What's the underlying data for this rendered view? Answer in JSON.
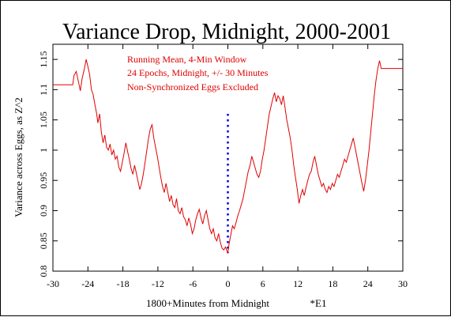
{
  "chart_data": {
    "type": "line",
    "title": "Variance Drop, Midnight, 2000-2001",
    "xlabel": "1800+Minutes from Midnight",
    "xlabel_note": "*E1",
    "ylabel": "Variance across Eggs, as Z^2",
    "xlim": [
      -30,
      30
    ],
    "ylim": [
      0.8,
      1.175
    ],
    "x_ticks": [
      -30,
      -24,
      -18,
      -12,
      -6,
      0,
      6,
      12,
      18,
      24,
      30
    ],
    "y_ticks": [
      0.8,
      0.85,
      0.9,
      0.95,
      1,
      1.05,
      1.1,
      1.15
    ],
    "annotations": [
      "Running Mean, 4-Min Window",
      "24 Epochs, Midnight, +/- 30 Minutes",
      "Non-Synchronized Eggs Excluded"
    ],
    "line_color": "#e00000",
    "marker_color": "#0000e0",
    "midnight_marker": {
      "x": 0,
      "y_from": 0.83,
      "y_to": 1.06,
      "style": "dotted"
    },
    "series": [
      {
        "values": [
          [
            -30,
            1.108
          ],
          [
            -26.6,
            1.108
          ],
          [
            -26.4,
            1.123
          ],
          [
            -26.0,
            1.13
          ],
          [
            -25.6,
            1.112
          ],
          [
            -25.3,
            1.098
          ],
          [
            -25.0,
            1.118
          ],
          [
            -24.6,
            1.135
          ],
          [
            -24.3,
            1.15
          ],
          [
            -24.0,
            1.138
          ],
          [
            -23.7,
            1.125
          ],
          [
            -23.4,
            1.1
          ],
          [
            -23.1,
            1.092
          ],
          [
            -22.8,
            1.075
          ],
          [
            -22.5,
            1.06
          ],
          [
            -22.3,
            1.045
          ],
          [
            -22.0,
            1.06
          ],
          [
            -21.7,
            1.03
          ],
          [
            -21.4,
            1.012
          ],
          [
            -21.1,
            1.025
          ],
          [
            -20.8,
            1.005
          ],
          [
            -20.5,
            1.0
          ],
          [
            -20.2,
            1.01
          ],
          [
            -19.9,
            0.992
          ],
          [
            -19.6,
            1.0
          ],
          [
            -19.3,
            0.985
          ],
          [
            -19.0,
            0.99
          ],
          [
            -18.7,
            0.972
          ],
          [
            -18.4,
            0.965
          ],
          [
            -18.1,
            0.98
          ],
          [
            -17.8,
            0.995
          ],
          [
            -17.5,
            1.012
          ],
          [
            -17.2,
            0.998
          ],
          [
            -16.9,
            0.985
          ],
          [
            -16.6,
            0.97
          ],
          [
            -16.3,
            0.96
          ],
          [
            -16.0,
            0.975
          ],
          [
            -15.7,
            0.962
          ],
          [
            -15.4,
            0.948
          ],
          [
            -15.1,
            0.935
          ],
          [
            -14.8,
            0.945
          ],
          [
            -14.5,
            0.96
          ],
          [
            -14.2,
            0.98
          ],
          [
            -13.9,
            1.0
          ],
          [
            -13.6,
            1.02
          ],
          [
            -13.3,
            1.035
          ],
          [
            -13.0,
            1.042
          ],
          [
            -12.7,
            1.02
          ],
          [
            -12.4,
            1.005
          ],
          [
            -12.1,
            0.99
          ],
          [
            -11.8,
            0.972
          ],
          [
            -11.5,
            0.955
          ],
          [
            -11.2,
            0.94
          ],
          [
            -10.9,
            0.93
          ],
          [
            -10.6,
            0.945
          ],
          [
            -10.3,
            0.93
          ],
          [
            -10.0,
            0.915
          ],
          [
            -9.7,
            0.925
          ],
          [
            -9.4,
            0.91
          ],
          [
            -9.1,
            0.905
          ],
          [
            -8.8,
            0.92
          ],
          [
            -8.5,
            0.9
          ],
          [
            -8.2,
            0.895
          ],
          [
            -7.9,
            0.905
          ],
          [
            -7.6,
            0.89
          ],
          [
            -7.3,
            0.885
          ],
          [
            -7.0,
            0.875
          ],
          [
            -6.7,
            0.888
          ],
          [
            -6.4,
            0.878
          ],
          [
            -6.1,
            0.862
          ],
          [
            -5.8,
            0.87
          ],
          [
            -5.5,
            0.885
          ],
          [
            -5.2,
            0.895
          ],
          [
            -4.9,
            0.902
          ],
          [
            -4.6,
            0.888
          ],
          [
            -4.3,
            0.878
          ],
          [
            -4.0,
            0.892
          ],
          [
            -3.7,
            0.9
          ],
          [
            -3.4,
            0.885
          ],
          [
            -3.1,
            0.87
          ],
          [
            -2.8,
            0.862
          ],
          [
            -2.5,
            0.87
          ],
          [
            -2.2,
            0.855
          ],
          [
            -1.9,
            0.85
          ],
          [
            -1.6,
            0.862
          ],
          [
            -1.3,
            0.848
          ],
          [
            -1.0,
            0.838
          ],
          [
            -0.7,
            0.835
          ],
          [
            -0.4,
            0.84
          ],
          [
            -0.1,
            0.832
          ],
          [
            0.0,
            0.83
          ],
          [
            0.2,
            0.845
          ],
          [
            0.5,
            0.86
          ],
          [
            0.8,
            0.875
          ],
          [
            1.1,
            0.87
          ],
          [
            1.4,
            0.88
          ],
          [
            1.7,
            0.892
          ],
          [
            2.0,
            0.9
          ],
          [
            2.3,
            0.91
          ],
          [
            2.6,
            0.92
          ],
          [
            2.9,
            0.935
          ],
          [
            3.2,
            0.95
          ],
          [
            3.5,
            0.965
          ],
          [
            3.8,
            0.975
          ],
          [
            4.1,
            0.99
          ],
          [
            4.4,
            0.98
          ],
          [
            4.7,
            0.97
          ],
          [
            5.0,
            0.96
          ],
          [
            5.3,
            0.955
          ],
          [
            5.6,
            0.965
          ],
          [
            5.9,
            0.985
          ],
          [
            6.2,
            1.0
          ],
          [
            6.5,
            1.02
          ],
          [
            6.8,
            1.04
          ],
          [
            7.1,
            1.06
          ],
          [
            7.4,
            1.072
          ],
          [
            7.7,
            1.085
          ],
          [
            8.0,
            1.095
          ],
          [
            8.3,
            1.08
          ],
          [
            8.6,
            1.09
          ],
          [
            8.9,
            1.085
          ],
          [
            9.2,
            1.075
          ],
          [
            9.5,
            1.09
          ],
          [
            9.8,
            1.07
          ],
          [
            10.1,
            1.05
          ],
          [
            10.4,
            1.035
          ],
          [
            10.7,
            1.02
          ],
          [
            11.0,
            1.0
          ],
          [
            11.3,
            0.975
          ],
          [
            11.6,
            0.955
          ],
          [
            11.9,
            0.935
          ],
          [
            12.2,
            0.912
          ],
          [
            12.5,
            0.925
          ],
          [
            12.8,
            0.935
          ],
          [
            13.1,
            0.925
          ],
          [
            13.4,
            0.938
          ],
          [
            13.7,
            0.95
          ],
          [
            14.0,
            0.96
          ],
          [
            14.3,
            0.965
          ],
          [
            14.6,
            0.98
          ],
          [
            14.9,
            0.99
          ],
          [
            15.2,
            0.975
          ],
          [
            15.5,
            0.96
          ],
          [
            15.8,
            0.95
          ],
          [
            16.1,
            0.94
          ],
          [
            16.4,
            0.945
          ],
          [
            16.7,
            0.935
          ],
          [
            17.0,
            0.93
          ],
          [
            17.3,
            0.94
          ],
          [
            17.6,
            0.935
          ],
          [
            17.9,
            0.945
          ],
          [
            18.2,
            0.94
          ],
          [
            18.5,
            0.95
          ],
          [
            18.8,
            0.96
          ],
          [
            19.1,
            0.955
          ],
          [
            19.4,
            0.965
          ],
          [
            19.7,
            0.975
          ],
          [
            20.0,
            0.985
          ],
          [
            20.3,
            0.98
          ],
          [
            20.6,
            0.99
          ],
          [
            20.9,
            1.0
          ],
          [
            21.2,
            1.01
          ],
          [
            21.5,
            1.02
          ],
          [
            21.8,
            1.005
          ],
          [
            22.1,
            0.99
          ],
          [
            22.4,
            0.975
          ],
          [
            22.7,
            0.96
          ],
          [
            23.0,
            0.945
          ],
          [
            23.3,
            0.932
          ],
          [
            23.6,
            0.95
          ],
          [
            23.9,
            0.975
          ],
          [
            24.2,
            1.0
          ],
          [
            24.5,
            1.03
          ],
          [
            24.8,
            1.06
          ],
          [
            25.1,
            1.09
          ],
          [
            25.4,
            1.115
          ],
          [
            25.7,
            1.135
          ],
          [
            26.0,
            1.148
          ],
          [
            26.3,
            1.135
          ],
          [
            30,
            1.135
          ]
        ]
      }
    ]
  }
}
